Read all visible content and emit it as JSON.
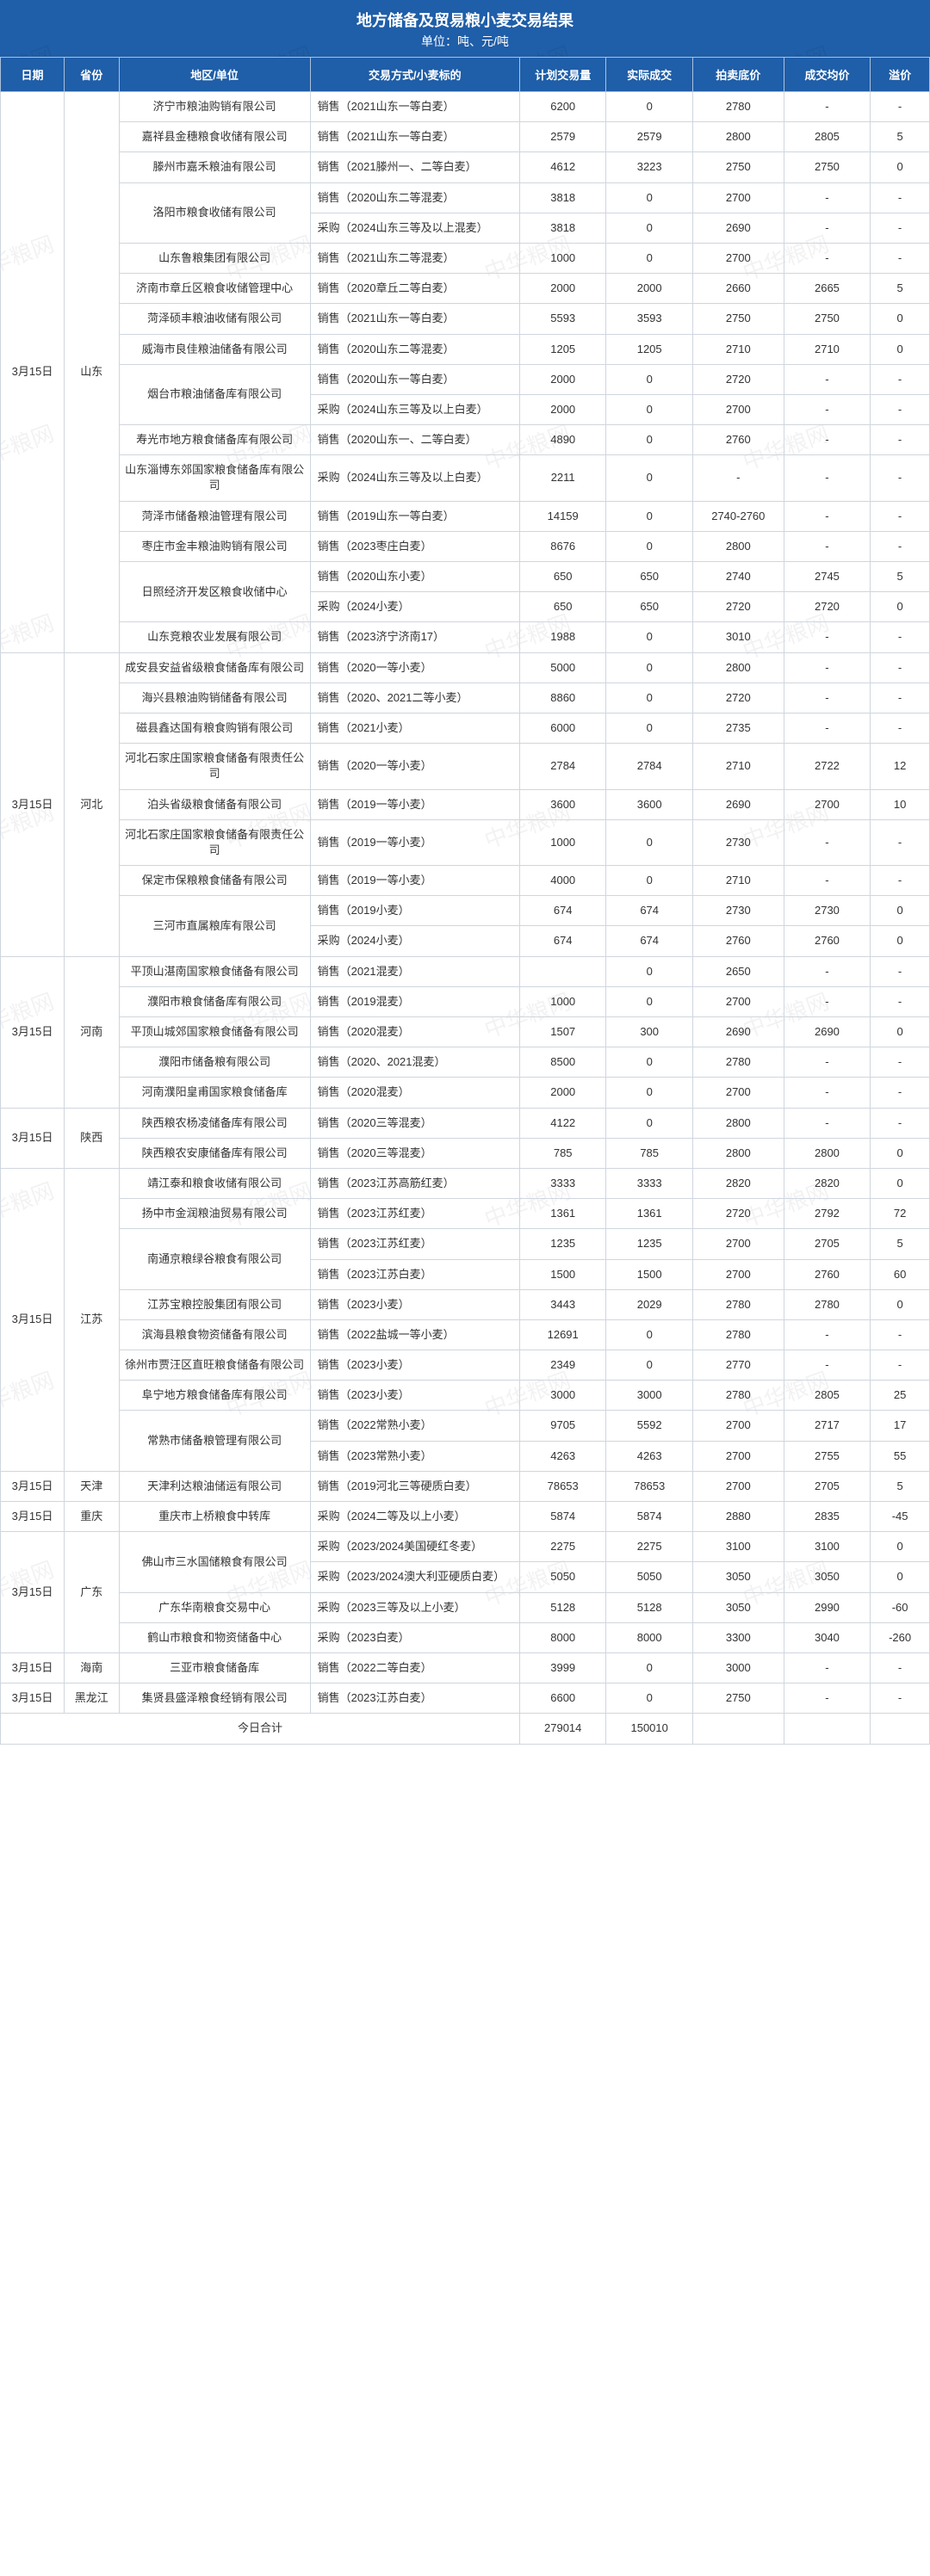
{
  "title": "地方储备及贸易粮小麦交易结果",
  "subtitle": "单位：吨、元/吨",
  "watermark_text": "中华粮网",
  "headers": {
    "date": "日期",
    "province": "省份",
    "unit": "地区/单位",
    "type": "交易方式/小麦标的",
    "plan": "计划交易量",
    "actual": "实际成交",
    "base": "拍卖底价",
    "avg": "成交均价",
    "premium": "溢价"
  },
  "footer_label": "今日合计",
  "footer_totals": {
    "plan": "279014",
    "actual": "150010"
  },
  "groups": [
    {
      "date": "3月15日",
      "province": "山东",
      "rows": [
        {
          "unit": "济宁市粮油购销有限公司",
          "unit_rs": 1,
          "type": "销售（2021山东一等白麦）",
          "plan": "6200",
          "actual": "0",
          "base": "2780",
          "avg": "-",
          "prem": "-"
        },
        {
          "unit": "嘉祥县金穗粮食收储有限公司",
          "unit_rs": 1,
          "type": "销售（2021山东一等白麦）",
          "plan": "2579",
          "actual": "2579",
          "base": "2800",
          "avg": "2805",
          "prem": "5"
        },
        {
          "unit": "滕州市嘉禾粮油有限公司",
          "unit_rs": 1,
          "type": "销售（2021滕州一、二等白麦）",
          "plan": "4612",
          "actual": "3223",
          "base": "2750",
          "avg": "2750",
          "prem": "0"
        },
        {
          "unit": "洛阳市粮食收储有限公司",
          "unit_rs": 2,
          "type": "销售（2020山东二等混麦）",
          "plan": "3818",
          "actual": "0",
          "base": "2700",
          "avg": "-",
          "prem": "-"
        },
        {
          "type": "采购（2024山东三等及以上混麦）",
          "plan": "3818",
          "actual": "0",
          "base": "2690",
          "avg": "-",
          "prem": "-"
        },
        {
          "unit": "山东鲁粮集团有限公司",
          "unit_rs": 1,
          "type": "销售（2021山东二等混麦）",
          "plan": "1000",
          "actual": "0",
          "base": "2700",
          "avg": "-",
          "prem": "-"
        },
        {
          "unit": "济南市章丘区粮食收储管理中心",
          "unit_rs": 1,
          "type": "销售（2020章丘二等白麦）",
          "plan": "2000",
          "actual": "2000",
          "base": "2660",
          "avg": "2665",
          "prem": "5"
        },
        {
          "unit": "菏泽硕丰粮油收储有限公司",
          "unit_rs": 1,
          "type": "销售（2021山东一等白麦）",
          "plan": "5593",
          "actual": "3593",
          "base": "2750",
          "avg": "2750",
          "prem": "0"
        },
        {
          "unit": "威海市良佳粮油储备有限公司",
          "unit_rs": 1,
          "type": "销售（2020山东二等混麦）",
          "plan": "1205",
          "actual": "1205",
          "base": "2710",
          "avg": "2710",
          "prem": "0"
        },
        {
          "unit": "烟台市粮油储备库有限公司",
          "unit_rs": 2,
          "type": "销售（2020山东一等白麦）",
          "plan": "2000",
          "actual": "0",
          "base": "2720",
          "avg": "-",
          "prem": "-"
        },
        {
          "type": "采购（2024山东三等及以上白麦）",
          "plan": "2000",
          "actual": "0",
          "base": "2700",
          "avg": "-",
          "prem": "-"
        },
        {
          "unit": "寿光市地方粮食储备库有限公司",
          "unit_rs": 1,
          "type": "销售（2020山东一、二等白麦）",
          "plan": "4890",
          "actual": "0",
          "base": "2760",
          "avg": "-",
          "prem": "-"
        },
        {
          "unit": "山东淄博东郊国家粮食储备库有限公司",
          "unit_rs": 1,
          "type": "采购（2024山东三等及以上白麦）",
          "plan": "2211",
          "actual": "0",
          "base": "-",
          "avg": "-",
          "prem": "-"
        },
        {
          "unit": "菏泽市储备粮油管理有限公司",
          "unit_rs": 1,
          "type": "销售（2019山东一等白麦）",
          "plan": "14159",
          "actual": "0",
          "base": "2740-2760",
          "avg": "-",
          "prem": "-"
        },
        {
          "unit": "枣庄市金丰粮油购销有限公司",
          "unit_rs": 1,
          "type": "销售（2023枣庄白麦）",
          "plan": "8676",
          "actual": "0",
          "base": "2800",
          "avg": "-",
          "prem": "-"
        },
        {
          "unit": "日照经济开发区粮食收储中心",
          "unit_rs": 2,
          "type": "销售（2020山东小麦）",
          "plan": "650",
          "actual": "650",
          "base": "2740",
          "avg": "2745",
          "prem": "5"
        },
        {
          "type": "采购（2024小麦）",
          "plan": "650",
          "actual": "650",
          "base": "2720",
          "avg": "2720",
          "prem": "0"
        },
        {
          "unit": "山东竞粮农业发展有限公司",
          "unit_rs": 1,
          "type": "销售（2023济宁济南17）",
          "plan": "1988",
          "actual": "0",
          "base": "3010",
          "avg": "-",
          "prem": "-"
        }
      ]
    },
    {
      "date": "3月15日",
      "province": "河北",
      "rows": [
        {
          "unit": "成安县安益省级粮食储备库有限公司",
          "unit_rs": 1,
          "type": "销售（2020一等小麦）",
          "plan": "5000",
          "actual": "0",
          "base": "2800",
          "avg": "-",
          "prem": "-"
        },
        {
          "unit": "海兴县粮油购销储备有限公司",
          "unit_rs": 1,
          "type": "销售（2020、2021二等小麦）",
          "plan": "8860",
          "actual": "0",
          "base": "2720",
          "avg": "-",
          "prem": "-"
        },
        {
          "unit": "磁县鑫达国有粮食购销有限公司",
          "unit_rs": 1,
          "type": "销售（2021小麦）",
          "plan": "6000",
          "actual": "0",
          "base": "2735",
          "avg": "-",
          "prem": "-"
        },
        {
          "unit": "河北石家庄国家粮食储备有限责任公司",
          "unit_rs": 1,
          "type": "销售（2020一等小麦）",
          "plan": "2784",
          "actual": "2784",
          "base": "2710",
          "avg": "2722",
          "prem": "12"
        },
        {
          "unit": "泊头省级粮食储备有限公司",
          "unit_rs": 1,
          "type": "销售（2019一等小麦）",
          "plan": "3600",
          "actual": "3600",
          "base": "2690",
          "avg": "2700",
          "prem": "10"
        },
        {
          "unit": "河北石家庄国家粮食储备有限责任公司",
          "unit_rs": 1,
          "type": "销售（2019一等小麦）",
          "plan": "1000",
          "actual": "0",
          "base": "2730",
          "avg": "-",
          "prem": "-"
        },
        {
          "unit": "保定市保粮粮食储备有限公司",
          "unit_rs": 1,
          "type": "销售（2019一等小麦）",
          "plan": "4000",
          "actual": "0",
          "base": "2710",
          "avg": "-",
          "prem": "-"
        },
        {
          "unit": "三河市直属粮库有限公司",
          "unit_rs": 2,
          "type": "销售（2019小麦）",
          "plan": "674",
          "actual": "674",
          "base": "2730",
          "avg": "2730",
          "prem": "0"
        },
        {
          "type": "采购（2024小麦）",
          "plan": "674",
          "actual": "674",
          "base": "2760",
          "avg": "2760",
          "prem": "0"
        }
      ]
    },
    {
      "date": "3月15日",
      "province": "河南",
      "rows": [
        {
          "unit": "平顶山湛南国家粮食储备有限公司",
          "unit_rs": 1,
          "type": "销售（2021混麦）",
          "plan": "",
          "actual": "0",
          "base": "2650",
          "avg": "-",
          "prem": "-"
        },
        {
          "unit": "濮阳市粮食储备库有限公司",
          "unit_rs": 1,
          "type": "销售（2019混麦）",
          "plan": "1000",
          "actual": "0",
          "base": "2700",
          "avg": "-",
          "prem": "-"
        },
        {
          "unit": "平顶山城郊国家粮食储备有限公司",
          "unit_rs": 1,
          "type": "销售（2020混麦）",
          "plan": "1507",
          "actual": "300",
          "base": "2690",
          "avg": "2690",
          "prem": "0"
        },
        {
          "unit": "濮阳市储备粮有限公司",
          "unit_rs": 1,
          "type": "销售（2020、2021混麦）",
          "plan": "8500",
          "actual": "0",
          "base": "2780",
          "avg": "-",
          "prem": "-"
        },
        {
          "unit": "河南濮阳皇甫国家粮食储备库",
          "unit_rs": 1,
          "type": "销售（2020混麦）",
          "plan": "2000",
          "actual": "0",
          "base": "2700",
          "avg": "-",
          "prem": "-"
        }
      ]
    },
    {
      "date": "3月15日",
      "province": "陕西",
      "rows": [
        {
          "unit": "陕西粮农杨凌储备库有限公司",
          "unit_rs": 1,
          "type": "销售（2020三等混麦）",
          "plan": "4122",
          "actual": "0",
          "base": "2800",
          "avg": "-",
          "prem": "-"
        },
        {
          "unit": "陕西粮农安康储备库有限公司",
          "unit_rs": 1,
          "type": "销售（2020三等混麦）",
          "plan": "785",
          "actual": "785",
          "base": "2800",
          "avg": "2800",
          "prem": "0"
        }
      ]
    },
    {
      "date": "3月15日",
      "province": "江苏",
      "rows": [
        {
          "unit": "靖江泰和粮食收储有限公司",
          "unit_rs": 1,
          "type": "销售（2023江苏高筋红麦）",
          "plan": "3333",
          "actual": "3333",
          "base": "2820",
          "avg": "2820",
          "prem": "0"
        },
        {
          "unit": "扬中市金润粮油贸易有限公司",
          "unit_rs": 1,
          "type": "销售（2023江苏红麦）",
          "plan": "1361",
          "actual": "1361",
          "base": "2720",
          "avg": "2792",
          "prem": "72"
        },
        {
          "unit": "南通京粮绿谷粮食有限公司",
          "unit_rs": 2,
          "type": "销售（2023江苏红麦）",
          "plan": "1235",
          "actual": "1235",
          "base": "2700",
          "avg": "2705",
          "prem": "5"
        },
        {
          "type": "销售（2023江苏白麦）",
          "plan": "1500",
          "actual": "1500",
          "base": "2700",
          "avg": "2760",
          "prem": "60"
        },
        {
          "unit": "江苏宝粮控股集团有限公司",
          "unit_rs": 1,
          "type": "销售（2023小麦）",
          "plan": "3443",
          "actual": "2029",
          "base": "2780",
          "avg": "2780",
          "prem": "0"
        },
        {
          "unit": "滨海县粮食物资储备有限公司",
          "unit_rs": 1,
          "type": "销售（2022盐城一等小麦）",
          "plan": "12691",
          "actual": "0",
          "base": "2780",
          "avg": "-",
          "prem": "-"
        },
        {
          "unit": "徐州市贾汪区直旺粮食储备有限公司",
          "unit_rs": 1,
          "type": "销售（2023小麦）",
          "plan": "2349",
          "actual": "0",
          "base": "2770",
          "avg": "-",
          "prem": "-"
        },
        {
          "unit": "阜宁地方粮食储备库有限公司",
          "unit_rs": 1,
          "type": "销售（2023小麦）",
          "plan": "3000",
          "actual": "3000",
          "base": "2780",
          "avg": "2805",
          "prem": "25"
        },
        {
          "unit": "常熟市储备粮管理有限公司",
          "unit_rs": 2,
          "type": "销售（2022常熟小麦）",
          "plan": "9705",
          "actual": "5592",
          "base": "2700",
          "avg": "2717",
          "prem": "17"
        },
        {
          "type": "销售（2023常熟小麦）",
          "plan": "4263",
          "actual": "4263",
          "base": "2700",
          "avg": "2755",
          "prem": "55"
        }
      ]
    },
    {
      "date": "3月15日",
      "province": "天津",
      "rows": [
        {
          "unit": "天津利达粮油储运有限公司",
          "unit_rs": 1,
          "type": "销售（2019河北三等硬质白麦）",
          "plan": "78653",
          "actual": "78653",
          "base": "2700",
          "avg": "2705",
          "prem": "5"
        }
      ]
    },
    {
      "date": "3月15日",
      "province": "重庆",
      "rows": [
        {
          "unit": "重庆市上桥粮食中转库",
          "unit_rs": 1,
          "type": "采购（2024二等及以上小麦）",
          "plan": "5874",
          "actual": "5874",
          "base": "2880",
          "avg": "2835",
          "prem": "-45"
        }
      ]
    },
    {
      "date": "3月15日",
      "province": "广东",
      "rows": [
        {
          "unit": "佛山市三水国储粮食有限公司",
          "unit_rs": 2,
          "type": "采购（2023/2024美国硬红冬麦）",
          "plan": "2275",
          "actual": "2275",
          "base": "3100",
          "avg": "3100",
          "prem": "0"
        },
        {
          "type": "采购（2023/2024澳大利亚硬质白麦）",
          "plan": "5050",
          "actual": "5050",
          "base": "3050",
          "avg": "3050",
          "prem": "0"
        },
        {
          "unit": "广东华南粮食交易中心",
          "unit_rs": 1,
          "type": "采购（2023三等及以上小麦）",
          "plan": "5128",
          "actual": "5128",
          "base": "3050",
          "avg": "2990",
          "prem": "-60"
        },
        {
          "unit": "鹤山市粮食和物资储备中心",
          "unit_rs": 1,
          "type": "采购（2023白麦）",
          "plan": "8000",
          "actual": "8000",
          "base": "3300",
          "avg": "3040",
          "prem": "-260"
        }
      ]
    },
    {
      "date": "3月15日",
      "province": "海南",
      "rows": [
        {
          "unit": "三亚市粮食储备库",
          "unit_rs": 1,
          "type": "销售（2022二等白麦）",
          "plan": "3999",
          "actual": "0",
          "base": "3000",
          "avg": "-",
          "prem": "-"
        }
      ]
    },
    {
      "date": "3月15日",
      "province": "黑龙江",
      "rows": [
        {
          "unit": "集贤县盛泽粮食经销有限公司",
          "unit_rs": 1,
          "type": "销售（2023江苏白麦）",
          "plan": "6600",
          "actual": "0",
          "base": "2750",
          "avg": "-",
          "prem": "-"
        }
      ]
    }
  ]
}
